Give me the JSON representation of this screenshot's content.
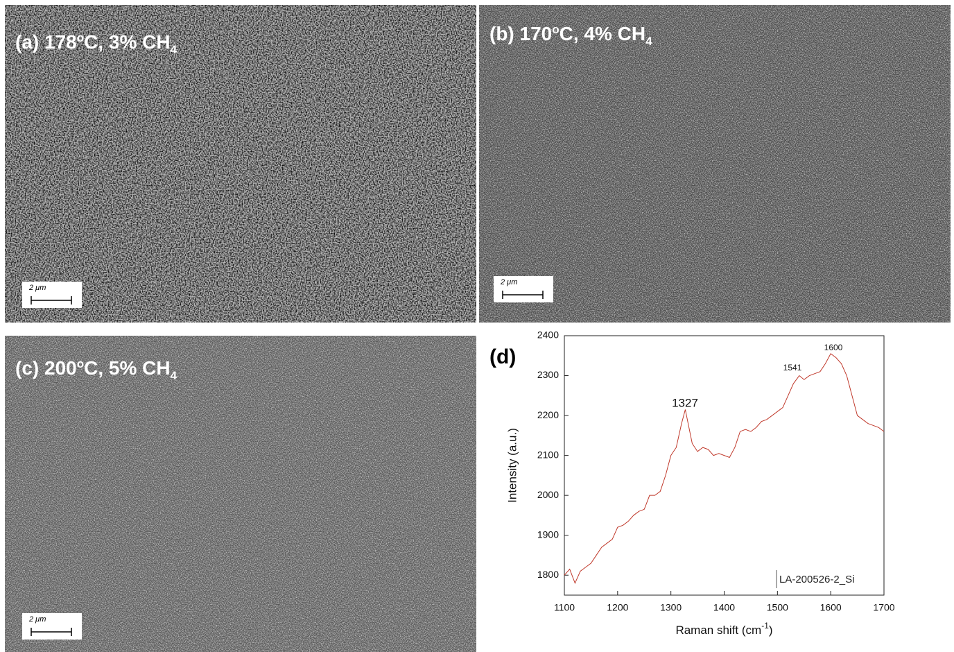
{
  "panels": [
    {
      "title_parts": [
        "(a) 178",
        "o",
        "C, 3% CH",
        "4"
      ],
      "scale_bar": "2 μm"
    },
    {
      "title_parts": [
        "(b) 170",
        "o",
        "C, 4% CH",
        "4"
      ],
      "scale_bar": "2 μm"
    },
    {
      "title_parts": [
        "(c) 200",
        "o",
        "C, 5% CH",
        "4"
      ],
      "scale_bar": "2 μm"
    }
  ],
  "chart_data": {
    "type": "line",
    "panel_label": "(d)",
    "xlabel_parts": [
      "Raman shift (cm",
      "-1",
      ")"
    ],
    "ylabel": "Intensity (a.u.)",
    "x": [
      1100,
      1110,
      1120,
      1130,
      1140,
      1150,
      1160,
      1170,
      1180,
      1190,
      1200,
      1210,
      1220,
      1230,
      1240,
      1250,
      1260,
      1270,
      1280,
      1290,
      1300,
      1310,
      1320,
      1327,
      1340,
      1350,
      1360,
      1370,
      1380,
      1390,
      1400,
      1410,
      1420,
      1430,
      1440,
      1450,
      1460,
      1470,
      1480,
      1490,
      1500,
      1510,
      1520,
      1530,
      1541,
      1550,
      1560,
      1570,
      1580,
      1590,
      1600,
      1610,
      1620,
      1630,
      1640,
      1650,
      1660,
      1670,
      1680,
      1690,
      1700
    ],
    "series": [
      {
        "name": "LA-200526-2_Si",
        "color": "#c0392b",
        "values": [
          1800,
          1815,
          1780,
          1810,
          1820,
          1830,
          1850,
          1870,
          1880,
          1890,
          1920,
          1925,
          1935,
          1950,
          1960,
          1965,
          2000,
          2000,
          2010,
          2050,
          2100,
          2120,
          2180,
          2215,
          2130,
          2110,
          2120,
          2115,
          2100,
          2105,
          2100,
          2095,
          2120,
          2160,
          2165,
          2160,
          2170,
          2185,
          2190,
          2200,
          2210,
          2220,
          2250,
          2280,
          2300,
          2290,
          2300,
          2305,
          2310,
          2330,
          2355,
          2345,
          2330,
          2300,
          2250,
          2200,
          2190,
          2180,
          2175,
          2170,
          2160
        ]
      }
    ],
    "annotations": [
      "1327",
      "1541",
      "1600"
    ],
    "xlim": [
      1100,
      1700
    ],
    "ylim": [
      1750,
      2400
    ],
    "xticks": [
      1100,
      1200,
      1300,
      1400,
      1500,
      1600,
      1700
    ],
    "yticks": [
      1800,
      1900,
      2000,
      2100,
      2200,
      2300,
      2400
    ],
    "legend": "lower right"
  }
}
